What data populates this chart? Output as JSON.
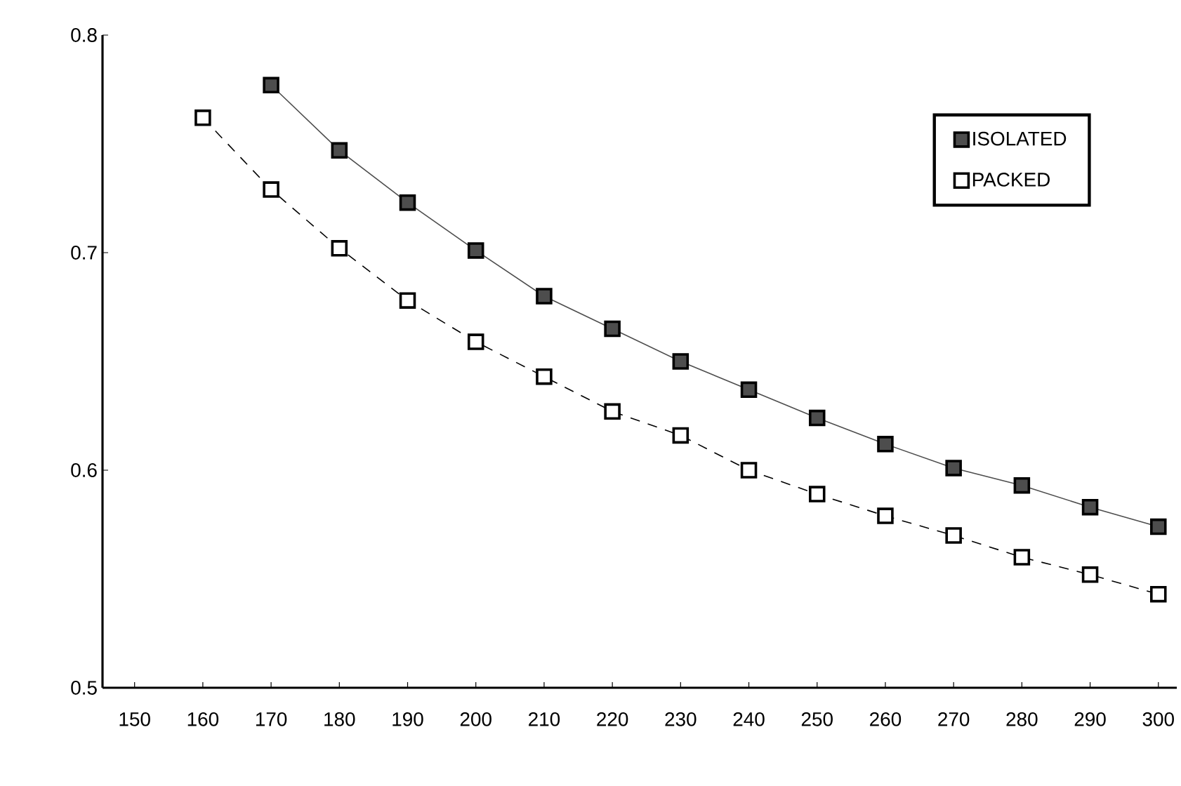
{
  "chart_data": {
    "type": "line",
    "categories": [
      "150",
      "160",
      "170",
      "180",
      "190",
      "200",
      "210",
      "220",
      "230",
      "240",
      "250",
      "260",
      "270",
      "280",
      "290",
      "300"
    ],
    "ylim": [
      0.5,
      0.8
    ],
    "yticks": [
      0.5,
      0.6,
      0.7,
      0.8
    ],
    "marker": "square",
    "legend": "top right",
    "grid": false,
    "series": [
      {
        "name": "ISOLATED",
        "color": "#4d4d4d",
        "line_style": "solid",
        "values": [
          null,
          null,
          0.777,
          0.747,
          0.723,
          0.701,
          0.68,
          0.665,
          0.65,
          0.637,
          0.624,
          0.612,
          0.601,
          0.593,
          0.583,
          0.574
        ]
      },
      {
        "name": "PACKED",
        "color": "#000000",
        "line_style": "dashed",
        "values": [
          null,
          0.762,
          0.729,
          0.702,
          0.678,
          0.659,
          0.643,
          0.627,
          0.616,
          0.6,
          0.589,
          0.579,
          0.57,
          0.56,
          0.552,
          0.543
        ]
      }
    ]
  }
}
